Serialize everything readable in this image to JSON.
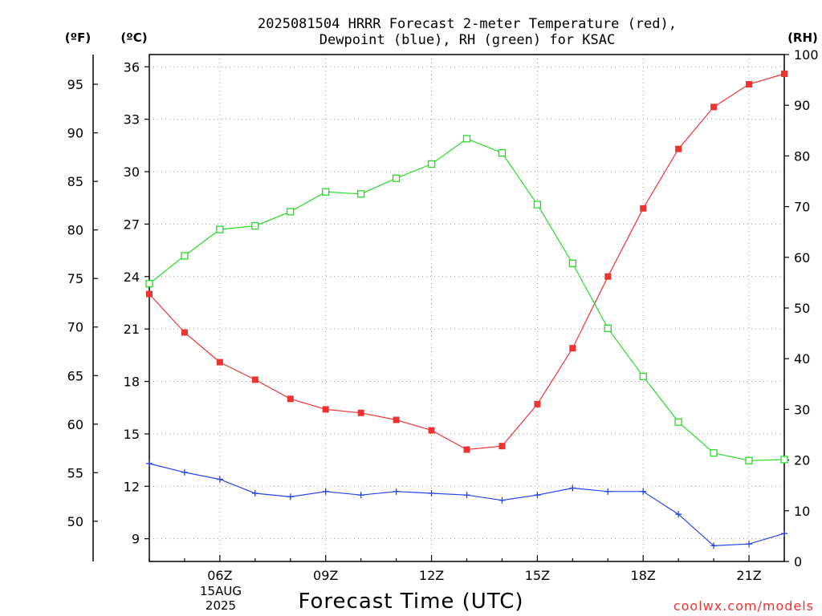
{
  "chart_data": {
    "type": "line",
    "title_line1": "2025081504 HRRR Forecast 2-meter Temperature (red),",
    "title_line2": "Dewpoint (blue), RH (green) for KSAC",
    "xlabel": "Forecast Time (UTC)",
    "date_line1": "15AUG",
    "date_line2": "2025",
    "watermark": "coolwx.com/models",
    "left_unit_f": "(ºF)",
    "left_unit_c": "(ºC)",
    "right_unit": "(RH)",
    "x_hours": [
      4,
      5,
      6,
      7,
      8,
      9,
      10,
      11,
      12,
      13,
      14,
      15,
      16,
      17,
      18,
      19,
      20,
      21,
      22
    ],
    "x_ticks": [
      {
        "hour": 6,
        "label": "06Z"
      },
      {
        "hour": 9,
        "label": "09Z"
      },
      {
        "hour": 12,
        "label": "12Z"
      },
      {
        "hour": 15,
        "label": "15Z"
      },
      {
        "hour": 18,
        "label": "18Z"
      },
      {
        "hour": 21,
        "label": "21Z"
      }
    ],
    "x_range": [
      4,
      22
    ],
    "celsius_ticks": [
      9,
      12,
      15,
      18,
      21,
      24,
      27,
      30,
      33,
      36
    ],
    "celsius_range": [
      7.7,
      36.7
    ],
    "fahrenheit_ticks": [
      50,
      55,
      60,
      65,
      70,
      75,
      80,
      85,
      90,
      95
    ],
    "rh_ticks": [
      0,
      10,
      20,
      30,
      40,
      50,
      60,
      70,
      80,
      90,
      100
    ],
    "rh_range": [
      0,
      100
    ],
    "series": [
      {
        "name": "Temperature",
        "axis": "celsius",
        "color": "#ee3333",
        "marker": "filled-square",
        "values": [
          23.0,
          20.8,
          19.1,
          18.1,
          17.0,
          16.4,
          16.2,
          15.8,
          15.2,
          14.1,
          14.3,
          16.7,
          19.9,
          24.0,
          27.9,
          31.3,
          33.7,
          35.0,
          35.6
        ]
      },
      {
        "name": "Dewpoint",
        "axis": "celsius",
        "color": "#2244ee",
        "marker": "plus",
        "values": [
          13.3,
          12.8,
          12.4,
          11.6,
          11.4,
          11.7,
          11.5,
          11.7,
          11.6,
          11.5,
          11.2,
          11.5,
          11.9,
          11.7,
          11.7,
          10.4,
          8.6,
          8.7,
          9.3
        ]
      },
      {
        "name": "RH",
        "axis": "rh",
        "color": "#22dd22",
        "marker": "open-square",
        "values": [
          54.8,
          60.3,
          65.5,
          66.2,
          69.0,
          72.9,
          72.5,
          75.6,
          78.4,
          83.4,
          80.6,
          70.4,
          58.8,
          46.0,
          36.5,
          27.5,
          21.4,
          19.9,
          20.1
        ]
      }
    ],
    "grid": true,
    "legend": "none"
  }
}
